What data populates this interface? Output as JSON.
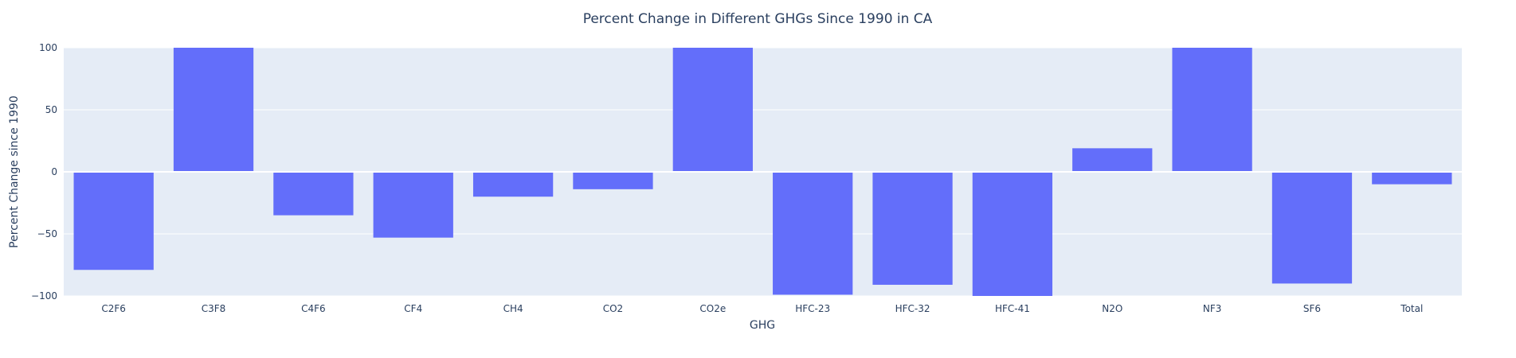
{
  "chart_data": {
    "type": "bar",
    "title": "Percent Change in Different GHGs Since 1990 in CA",
    "xlabel": "GHG",
    "ylabel": "Percent Change since 1990",
    "categories": [
      "C2F6",
      "C3F8",
      "C4F6",
      "CF4",
      "CH4",
      "CO2",
      "CO2e",
      "HFC-23",
      "HFC-32",
      "HFC-41",
      "N2O",
      "NF3",
      "SF6",
      "Total"
    ],
    "values": [
      -79,
      100,
      -35,
      -53,
      -20,
      -14,
      100,
      -99,
      -91,
      -100,
      19,
      100,
      -90,
      -10
    ],
    "ylim": [
      -100,
      100
    ],
    "yticks": [
      -100,
      -50,
      0,
      50,
      100
    ],
    "ytick_labels": [
      "−100",
      "−50",
      "0",
      "50",
      "100"
    ],
    "grid": true,
    "colors": {
      "bar": "#636efa",
      "plot_bg": "#e5ecf6",
      "text": "#2a3f5f"
    }
  }
}
